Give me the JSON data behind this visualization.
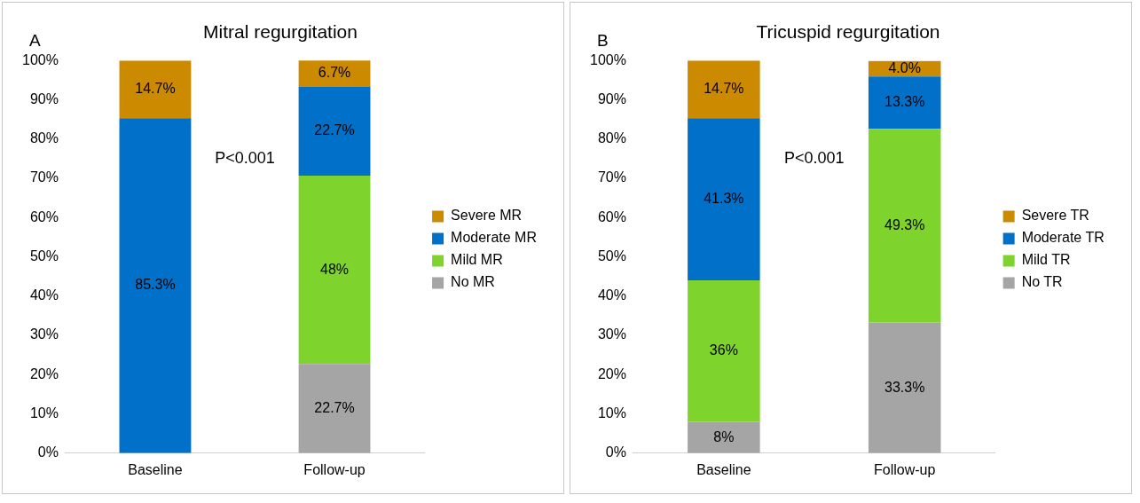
{
  "chart_data": [
    {
      "type": "bar",
      "title": "Mitral regurgitation",
      "annotations": [
        "A",
        "P<0.001"
      ],
      "categories": [
        "Baseline",
        "Follow-up"
      ],
      "stacked": true,
      "legend": "right",
      "grid": false,
      "ylim": [
        0,
        100
      ],
      "yticks": [
        {
          "value": 0,
          "label": "0%"
        },
        {
          "value": 10,
          "label": "10%"
        },
        {
          "value": 20,
          "label": "20%"
        },
        {
          "value": 30,
          "label": "30%"
        },
        {
          "value": 40,
          "label": "40%"
        },
        {
          "value": 50,
          "label": "50%"
        },
        {
          "value": 60,
          "label": "60%"
        },
        {
          "value": 70,
          "label": "70%"
        },
        {
          "value": 80,
          "label": "80%"
        },
        {
          "value": 90,
          "label": "90%"
        },
        {
          "value": 100,
          "label": "100%"
        }
      ],
      "series": [
        {
          "name": "No MR",
          "color": "#a5a5a5",
          "values": [
            0,
            22.7
          ],
          "value_labels": [
            null,
            "22.7%"
          ]
        },
        {
          "name": "Mild MR",
          "color": "#7ed42c",
          "values": [
            0,
            48
          ],
          "value_labels": [
            null,
            "48%"
          ]
        },
        {
          "name": "Moderate MR",
          "color": "#0070c9",
          "values": [
            85.3,
            22.7
          ],
          "value_labels": [
            "85.3%",
            "22.7%"
          ]
        },
        {
          "name": "Severe MR",
          "color": "#cc8a00",
          "values": [
            14.7,
            6.7
          ],
          "value_labels": [
            "14.7%",
            "6.7%"
          ]
        }
      ]
    },
    {
      "type": "bar",
      "title": "Tricuspid regurgitation",
      "annotations": [
        "B",
        "P<0.001"
      ],
      "categories": [
        "Baseline",
        "Follow-up"
      ],
      "stacked": true,
      "legend": "right",
      "grid": false,
      "ylim": [
        0,
        100
      ],
      "yticks": [
        {
          "value": 0,
          "label": "0%"
        },
        {
          "value": 10,
          "label": "10%"
        },
        {
          "value": 20,
          "label": "20%"
        },
        {
          "value": 30,
          "label": "30%"
        },
        {
          "value": 40,
          "label": "40%"
        },
        {
          "value": 50,
          "label": "50%"
        },
        {
          "value": 60,
          "label": "60%"
        },
        {
          "value": 70,
          "label": "70%"
        },
        {
          "value": 80,
          "label": "80%"
        },
        {
          "value": 90,
          "label": "90%"
        },
        {
          "value": 100,
          "label": "100%"
        }
      ],
      "series": [
        {
          "name": "No TR",
          "color": "#a5a5a5",
          "values": [
            8,
            33.3
          ],
          "value_labels": [
            "8%",
            "33.3%"
          ]
        },
        {
          "name": "Mild TR",
          "color": "#7ed42c",
          "values": [
            36,
            49.3
          ],
          "value_labels": [
            "36%",
            "49.3%"
          ]
        },
        {
          "name": "Moderate TR",
          "color": "#0070c9",
          "values": [
            41.3,
            13.3
          ],
          "value_labels": [
            "41.3%",
            "13.3%"
          ]
        },
        {
          "name": "Severe TR",
          "color": "#cc8a00",
          "values": [
            14.7,
            4.0
          ],
          "value_labels": [
            "14.7%",
            "4.0%"
          ]
        }
      ]
    }
  ]
}
